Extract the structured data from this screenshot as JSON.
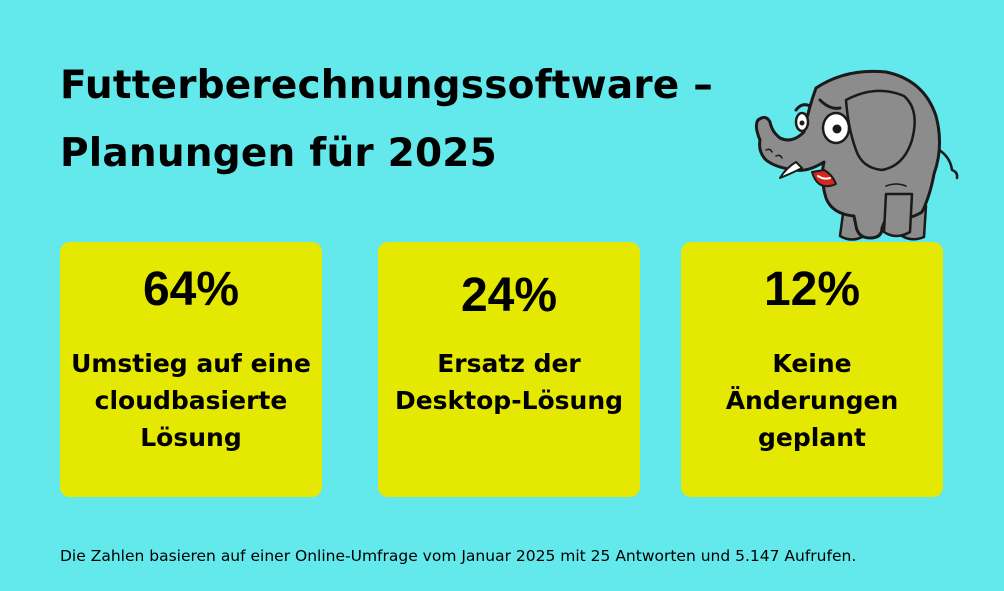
{
  "colors": {
    "background": "#63E8EC",
    "card": "#E5E800",
    "text": "#000000",
    "elephant_body": "#8C8C8C",
    "elephant_outline": "#1A1A1A",
    "elephant_mouth": "#D4271E"
  },
  "header": {
    "title_line1": "Futterberechnungssoftware –",
    "title_line2": "Planungen für 2025"
  },
  "illustration": {
    "icon": "elephant-icon"
  },
  "chart_data": {
    "type": "table",
    "title": "Futterberechnungssoftware – Planungen für 2025",
    "unit": "%",
    "items": [
      {
        "value": 64,
        "value_label": "64%",
        "label_lines": [
          "Umstieg auf eine",
          "cloudbasierte",
          "Lösung"
        ]
      },
      {
        "value": 24,
        "value_label": "24%",
        "label_lines": [
          "Ersatz der",
          "Desktop-Lösung"
        ]
      },
      {
        "value": 12,
        "value_label": "12%",
        "label_lines": [
          "Keine",
          "Änderungen",
          "geplant"
        ]
      }
    ],
    "footnote": "Die Zahlen basieren auf einer Online-Umfrage vom Januar 2025 mit 25 Antworten und 5.147 Aufrufen."
  }
}
